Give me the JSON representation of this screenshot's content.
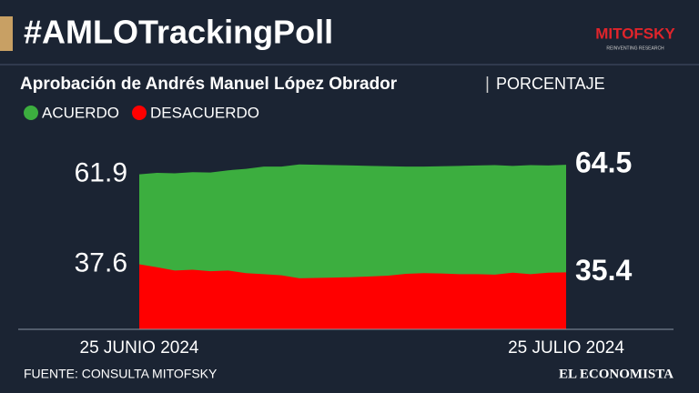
{
  "chart_data": {
    "type": "area",
    "title": "#AMLOTrackingPoll",
    "logo": "MITOFSKY",
    "logo_tagline": "REINVENTING RESEARCH",
    "subtitle": "Aprobación de Andrés Manuel López Obrador",
    "unit": "PORCENTAJE",
    "source": "FUENTE: CONSULTA MITOFSKY",
    "publisher": "EL ECONOMISTA",
    "categories": [
      "25 JUNIO 2024",
      null,
      null,
      null,
      null,
      null,
      null,
      null,
      null,
      null,
      null,
      null,
      null,
      null,
      null,
      null,
      null,
      null,
      null,
      null,
      null,
      null,
      null,
      null,
      "25 JULIO 2024"
    ],
    "series": [
      {
        "name": "ACUERDO",
        "color": "#3cae3f",
        "values": [
          61.9,
          62.3,
          62.2,
          62.5,
          62.4,
          63.0,
          63.4,
          64.0,
          64.0,
          64.6,
          64.5,
          64.4,
          64.3,
          64.2,
          64.1,
          64.0,
          64.0,
          64.1,
          64.2,
          64.3,
          64.4,
          64.2,
          64.4,
          64.3,
          64.5
        ]
      },
      {
        "name": "DESACUERDO",
        "color": "#ff0000",
        "values": [
          37.6,
          36.8,
          35.9,
          36.1,
          35.7,
          35.9,
          35.2,
          34.9,
          34.6,
          33.8,
          33.9,
          34.0,
          34.1,
          34.3,
          34.5,
          35.0,
          35.2,
          35.1,
          34.9,
          34.9,
          34.8,
          35.3,
          34.9,
          35.3,
          35.4
        ]
      }
    ],
    "ylim": [
      20,
      66
    ]
  }
}
